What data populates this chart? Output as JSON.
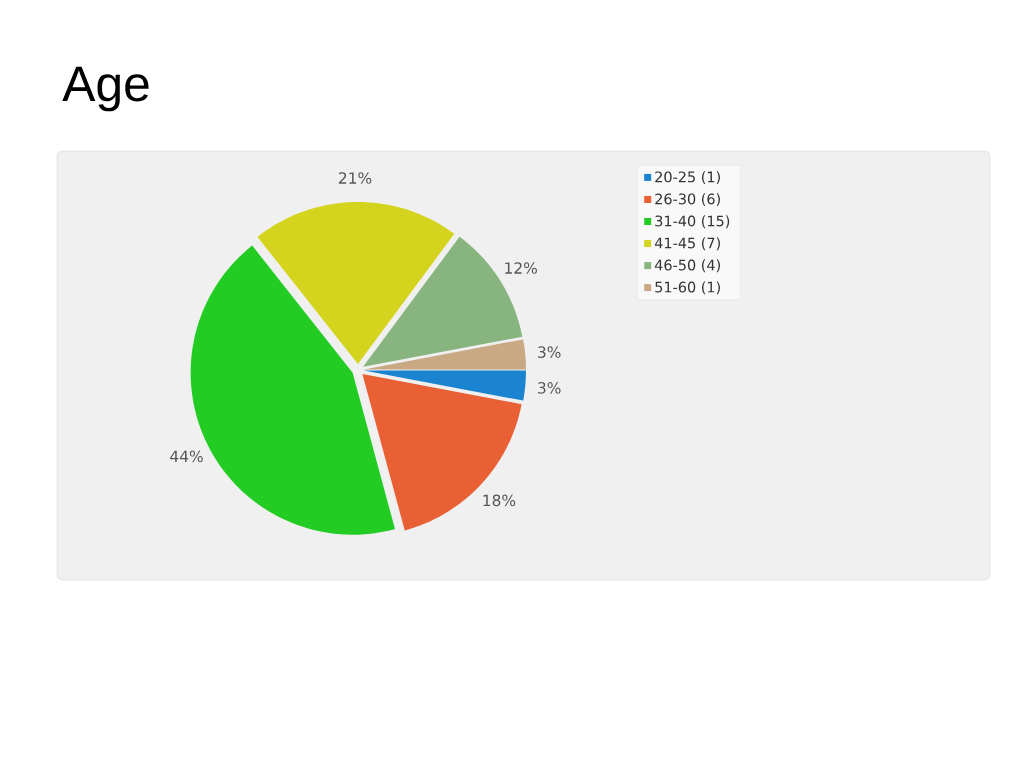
{
  "chart_data": {
    "type": "pie",
    "title": "Age",
    "categories": [
      "20-25 (1)",
      "26-30 (6)",
      "31-40 (15)",
      "41-45 (7)",
      "46-50 (4)",
      "51-60 (1)"
    ],
    "values": [
      3,
      18,
      44,
      21,
      12,
      3
    ],
    "colors": [
      "#1a84d0",
      "#e86034",
      "#22cc22",
      "#d4d41e",
      "#88b47f",
      "#c8a983"
    ],
    "value_labels": [
      "3%",
      "18%",
      "44%",
      "21%",
      "12%",
      "3%"
    ],
    "legend": "top right"
  }
}
